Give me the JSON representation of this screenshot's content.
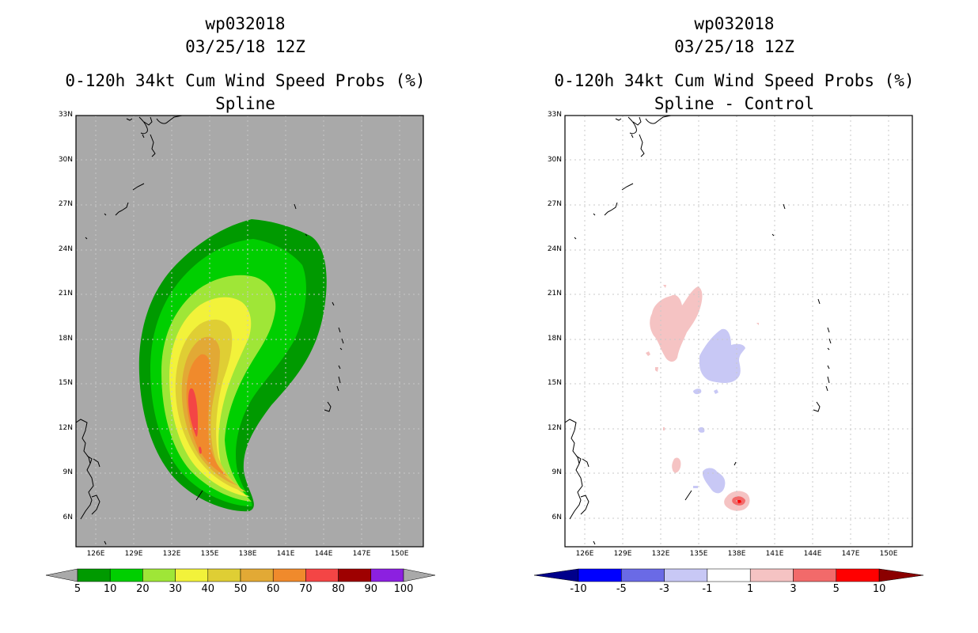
{
  "colors": {
    "panel_bg_left": "#a9a9a9",
    "panel_bg_right": "#ffffff",
    "grid": "#c8c8c8",
    "coast": "#000000"
  },
  "left_panel": {
    "title_line1": "wp032018",
    "title_line2": "03/25/18 12Z",
    "title_line3": "0-120h 34kt Cum Wind Speed Probs (%)",
    "title_line4": "Spline",
    "colorbar": {
      "labels": [
        "5",
        "10",
        "20",
        "30",
        "40",
        "50",
        "60",
        "70",
        "80",
        "90",
        "100"
      ],
      "colors": [
        "#009a00",
        "#00cf00",
        "#9fe637",
        "#f2f23a",
        "#dfce34",
        "#e2a935",
        "#f08a2c",
        "#f44545",
        "#9e0000",
        "#8c20e0"
      ],
      "arrow_color": "#a9a9a9"
    }
  },
  "right_panel": {
    "title_line1": "wp032018",
    "title_line2": "03/25/18 12Z",
    "title_line3": "0-120h 34kt Cum Wind Speed Probs (%)",
    "title_line4": "Spline - Control",
    "colorbar": {
      "labels": [
        "-10",
        "-5",
        "-3",
        "-1",
        "1",
        "3",
        "5",
        "10"
      ],
      "colors": [
        "#0000ff",
        "#6a6ae6",
        "#c8c8f5",
        "#ffffff",
        "#f5c3c3",
        "#f26a6a",
        "#ff0000"
      ],
      "left_arrow_color": "#00008b",
      "right_arrow_color": "#8b0000"
    }
  },
  "axes": {
    "lat_labels": [
      "33N",
      "30N",
      "27N",
      "24N",
      "21N",
      "18N",
      "15N",
      "12N",
      "9N",
      "6N"
    ],
    "lon_labels": [
      "126E",
      "129E",
      "132E",
      "135E",
      "138E",
      "141E",
      "144E",
      "147E",
      "150E"
    ]
  }
}
